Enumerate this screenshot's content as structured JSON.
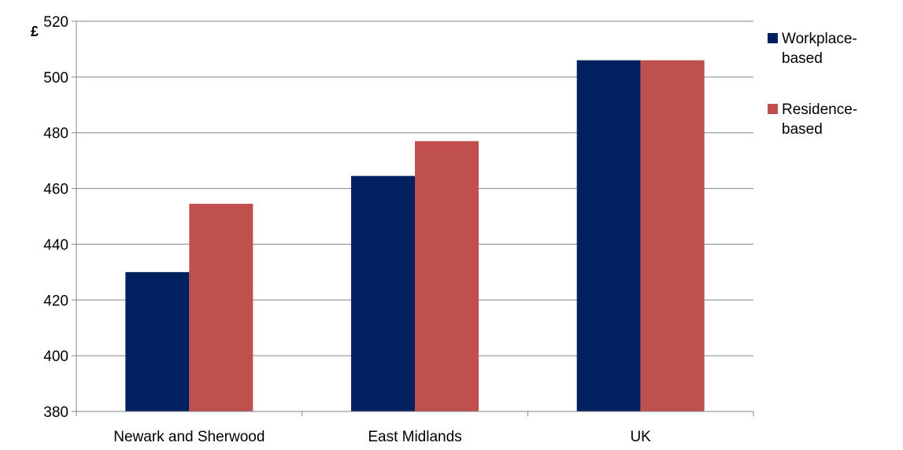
{
  "chart_data": {
    "type": "bar",
    "title": "",
    "xlabel": "",
    "ylabel": "£",
    "categories": [
      "Newark and Sherwood",
      "East Midlands",
      "UK"
    ],
    "series": [
      {
        "name": "Workplace-based",
        "name_lines": [
          "Workplace-",
          "based"
        ],
        "color": "#002060",
        "values": [
          430,
          464.5,
          506
        ]
      },
      {
        "name": "Residence-based",
        "name_lines": [
          "Residence-",
          "based"
        ],
        "color": "#C0504D",
        "values": [
          454.5,
          477,
          506
        ]
      }
    ],
    "ylim": [
      380,
      520
    ],
    "yticks": [
      380,
      400,
      420,
      440,
      460,
      480,
      500,
      520
    ],
    "grid": true,
    "legend_position": "right"
  }
}
